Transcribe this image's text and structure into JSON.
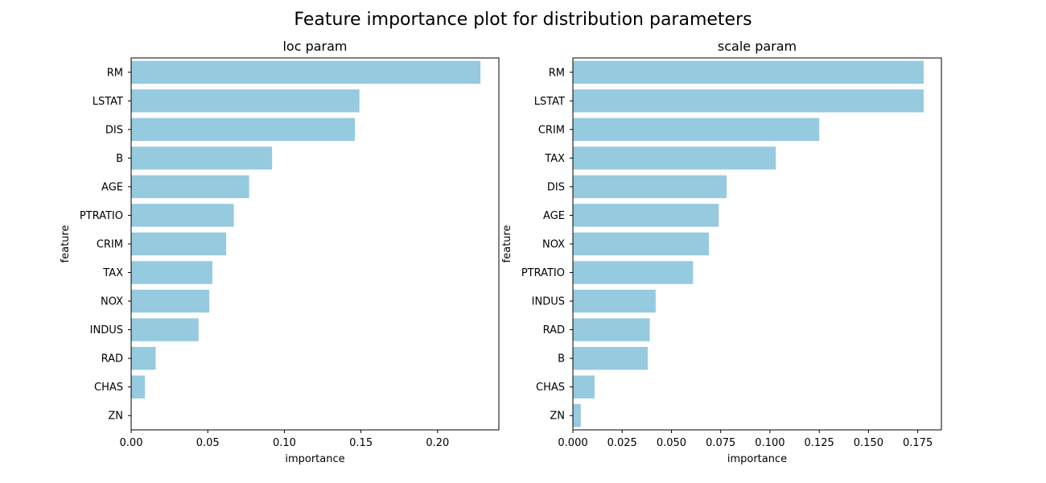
{
  "figure": {
    "suptitle": "Feature importance plot for distribution parameters",
    "bar_color": "#96CADF"
  },
  "chart_data": [
    {
      "type": "bar",
      "orientation": "horizontal",
      "title": "loc param",
      "xlabel": "importance",
      "ylabel": "feature",
      "xlim": [
        0,
        0.24
      ],
      "xticks": [
        0.0,
        0.05,
        0.1,
        0.15,
        0.2
      ],
      "xtick_labels": [
        "0.00",
        "0.05",
        "0.10",
        "0.15",
        "0.20"
      ],
      "categories": [
        "RM",
        "LSTAT",
        "DIS",
        "B",
        "AGE",
        "PTRATIO",
        "CRIM",
        "TAX",
        "NOX",
        "INDUS",
        "RAD",
        "CHAS",
        "ZN"
      ],
      "values": [
        0.228,
        0.149,
        0.146,
        0.092,
        0.077,
        0.067,
        0.062,
        0.053,
        0.051,
        0.044,
        0.016,
        0.009,
        0.0
      ]
    },
    {
      "type": "bar",
      "orientation": "horizontal",
      "title": "scale param",
      "xlabel": "importance",
      "ylabel": "feature",
      "xlim": [
        0,
        0.187
      ],
      "xticks": [
        0.0,
        0.025,
        0.05,
        0.075,
        0.1,
        0.125,
        0.15,
        0.175
      ],
      "xtick_labels": [
        "0.000",
        "0.025",
        "0.050",
        "0.075",
        "0.100",
        "0.125",
        "0.150",
        "0.175"
      ],
      "categories": [
        "RM",
        "LSTAT",
        "CRIM",
        "TAX",
        "DIS",
        "AGE",
        "NOX",
        "PTRATIO",
        "INDUS",
        "RAD",
        "B",
        "CHAS",
        "ZN"
      ],
      "values": [
        0.178,
        0.178,
        0.125,
        0.103,
        0.078,
        0.074,
        0.069,
        0.061,
        0.042,
        0.039,
        0.038,
        0.011,
        0.004
      ]
    }
  ]
}
